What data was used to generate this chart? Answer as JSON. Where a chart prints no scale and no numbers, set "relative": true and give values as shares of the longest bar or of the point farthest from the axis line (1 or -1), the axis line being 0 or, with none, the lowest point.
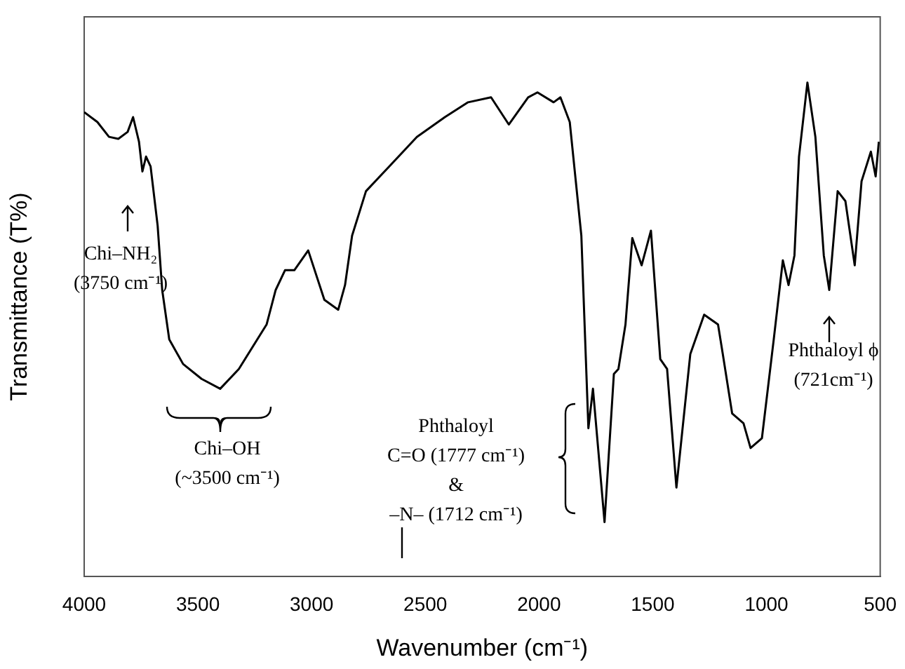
{
  "chart_data": {
    "type": "line",
    "relative": true,
    "xlabel": "Wavenumber (cm⁻¹)",
    "ylabel": "Transmittance (T%)",
    "xlim": [
      4000,
      500
    ],
    "xticks": [
      4000,
      3500,
      3000,
      2500,
      2000,
      1500,
      1000,
      500
    ],
    "grid": false,
    "legend": false,
    "marker": "none",
    "line_style": "solid",
    "series": [
      {
        "color": "#000000",
        "x": [
          4000,
          3942,
          3891,
          3850,
          3809,
          3785,
          3759,
          3744,
          3728,
          3708,
          3677,
          3657,
          3626,
          3565,
          3484,
          3402,
          3320,
          3198,
          3158,
          3117,
          3076,
          3015,
          2944,
          2883,
          2853,
          2822,
          2761,
          2659,
          2537,
          2414,
          2312,
          2211,
          2133,
          2048,
          2007,
          1936,
          1906,
          1865,
          1814,
          1783,
          1763,
          1712,
          1671,
          1651,
          1620,
          1590,
          1549,
          1508,
          1467,
          1437,
          1396,
          1335,
          1274,
          1213,
          1192,
          1151,
          1101,
          1070,
          1020,
          968,
          928,
          903,
          877,
          857,
          820,
          785,
          748,
          724,
          687,
          653,
          612,
          582,
          541,
          520,
          506
        ],
        "values": [
          0.94,
          0.92,
          0.89,
          0.886,
          0.9,
          0.93,
          0.88,
          0.82,
          0.85,
          0.83,
          0.71,
          0.58,
          0.48,
          0.43,
          0.4,
          0.38,
          0.42,
          0.51,
          0.58,
          0.62,
          0.62,
          0.66,
          0.56,
          0.54,
          0.59,
          0.69,
          0.78,
          0.83,
          0.89,
          0.93,
          0.96,
          0.97,
          0.915,
          0.97,
          0.98,
          0.96,
          0.97,
          0.92,
          0.69,
          0.3,
          0.38,
          0.11,
          0.41,
          0.42,
          0.51,
          0.685,
          0.63,
          0.7,
          0.44,
          0.42,
          0.18,
          0.45,
          0.53,
          0.51,
          0.45,
          0.33,
          0.31,
          0.26,
          0.28,
          0.48,
          0.64,
          0.59,
          0.65,
          0.85,
          1,
          0.89,
          0.65,
          0.58,
          0.78,
          0.76,
          0.63,
          0.8,
          0.86,
          0.81,
          0.88
        ]
      }
    ],
    "annotations": [
      "Chi–NH₂\n(3750 cm⁻¹)",
      "Chi–OH\n(~3500 cm⁻¹)",
      "Phthaloyl\nC=O (1777 cm⁻¹)\n&\n–N– (1712 cm⁻¹)",
      "Phthaloyl ϕ\n(721cm⁻¹)"
    ]
  }
}
